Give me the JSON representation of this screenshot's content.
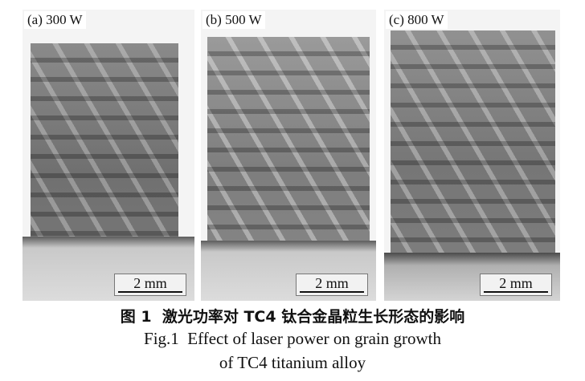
{
  "panels": [
    {
      "label": "(a) 300 W",
      "scale": "2 mm"
    },
    {
      "label": "(b) 500 W",
      "scale": "2 mm"
    },
    {
      "label": "(c) 800 W",
      "scale": "2 mm"
    }
  ],
  "caption": {
    "zh": "图 1  激光功率对 TC4 钛合金晶粒生长形态的影响",
    "en_line1": "Fig.1  Effect of laser power on grain growth",
    "en_line2": "of TC4 titanium alloy"
  }
}
